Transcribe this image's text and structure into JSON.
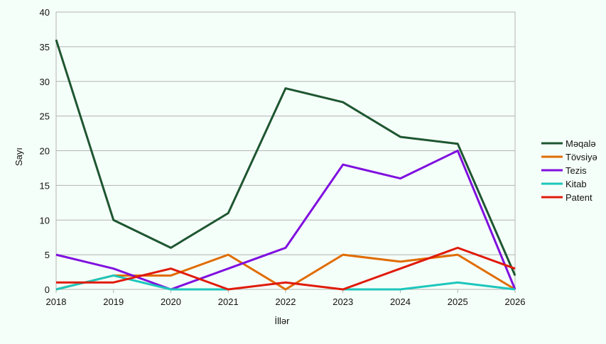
{
  "chart_data": {
    "type": "line",
    "title": "",
    "xlabel": "İllər",
    "ylabel": "Sayı",
    "x": [
      2018,
      2019,
      2020,
      2021,
      2022,
      2023,
      2024,
      2025,
      2026
    ],
    "ylim": [
      0,
      40
    ],
    "yticks": [
      0,
      5,
      10,
      15,
      20,
      25,
      30,
      35,
      40
    ],
    "grid": true,
    "legend_position": "right",
    "series": [
      {
        "name": "Məqalə",
        "color": "#1e5631",
        "values": [
          36,
          10,
          6,
          11,
          29,
          27,
          22,
          21,
          2
        ]
      },
      {
        "name": "Tövsiyə",
        "color": "#e06c00",
        "values": [
          0,
          2,
          2,
          5,
          0,
          5,
          4,
          5,
          0
        ]
      },
      {
        "name": "Tezis",
        "color": "#7f0fdf",
        "values": [
          5,
          3,
          0,
          3,
          6,
          18,
          16,
          20,
          0
        ]
      },
      {
        "name": "Kitab",
        "color": "#1cc6bc",
        "values": [
          0,
          2,
          0,
          0,
          null,
          0,
          0,
          1,
          0
        ]
      },
      {
        "name": "Patent",
        "color": "#e01a0a",
        "values": [
          1,
          1,
          3,
          0,
          1,
          0,
          3,
          6,
          3
        ]
      }
    ]
  }
}
